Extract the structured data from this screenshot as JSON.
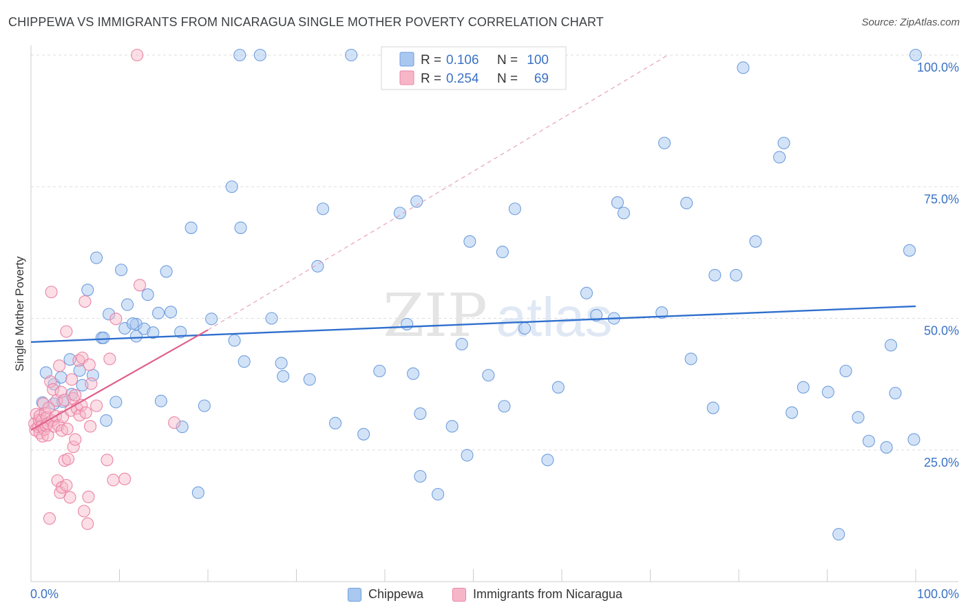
{
  "title": "CHIPPEWA VS IMMIGRANTS FROM NICARAGUA SINGLE MOTHER POVERTY CORRELATION CHART",
  "source": "Source: ZipAtlas.com",
  "watermark": {
    "zip": "ZIP",
    "atlas": "atlas"
  },
  "colors": {
    "blue_fill": "#a8c8f0",
    "blue_stroke": "#6f9ddd",
    "blue_line": "#2f6fce",
    "pink_fill": "#f7b6c8",
    "pink_stroke": "#ea84a6",
    "pink_line": "#e0608a",
    "value_text": "#3a72c4",
    "grid": "#dddddd"
  },
  "legend": [
    {
      "r_label": "R =",
      "r_value": "0.106",
      "n_label": "N =",
      "n_value": "100"
    },
    {
      "r_label": "R =",
      "r_value": "0.254",
      "n_label": "N =",
      "n_value": "69"
    }
  ],
  "chart_data": {
    "type": "scatter",
    "title": "CHIPPEWA VS IMMIGRANTS FROM NICARAGUA SINGLE MOTHER POVERTY CORRELATION CHART",
    "xlabel": "",
    "ylabel": "Single Mother Poverty",
    "xlim": [
      0,
      100
    ],
    "ylim": [
      0,
      100
    ],
    "x_tick_labels": [
      "0.0%",
      "100.0%"
    ],
    "y_tick_values": [
      25,
      50,
      75,
      100
    ],
    "y_tick_labels": [
      "25.0%",
      "50.0%",
      "75.0%",
      "100.0%"
    ],
    "legend_position": "top-center",
    "series": [
      {
        "name": "Chippewa",
        "r": 0.106,
        "n": 100,
        "trend": {
          "x": [
            0,
            100
          ],
          "y": [
            45.5,
            52.3
          ],
          "style": "solid"
        },
        "points": [
          [
            1.3,
            34
          ],
          [
            1.7,
            39.7
          ],
          [
            2.6,
            37.5
          ],
          [
            2.6,
            33.8
          ],
          [
            3.4,
            38.8
          ],
          [
            3.6,
            34.2
          ],
          [
            4.4,
            42.2
          ],
          [
            4.6,
            35.6
          ],
          [
            5.5,
            40.1
          ],
          [
            5.8,
            37.3
          ],
          [
            6.4,
            55.4
          ],
          [
            7.0,
            39.2
          ],
          [
            7.4,
            61.5
          ],
          [
            8.0,
            46.3
          ],
          [
            8.5,
            30.6
          ],
          [
            8.8,
            50.8
          ],
          [
            9.6,
            34.1
          ],
          [
            10.2,
            59.2
          ],
          [
            10.6,
            48.1
          ],
          [
            10.9,
            52.6
          ],
          [
            11.9,
            48.9
          ],
          [
            11.9,
            46.6
          ],
          [
            12.8,
            48.0
          ],
          [
            13.2,
            54.5
          ],
          [
            13.8,
            47.3
          ],
          [
            14.4,
            51.0
          ],
          [
            14.7,
            34.3
          ],
          [
            15.3,
            58.9
          ],
          [
            15.8,
            51.2
          ],
          [
            16.9,
            47.4
          ],
          [
            17.1,
            29.4
          ],
          [
            18.1,
            67.2
          ],
          [
            18.9,
            16.9
          ],
          [
            19.6,
            33.4
          ],
          [
            20.4,
            49.9
          ],
          [
            22.7,
            75.0
          ],
          [
            23.0,
            45.8
          ],
          [
            23.6,
            100
          ],
          [
            23.7,
            67.2
          ],
          [
            24.1,
            41.8
          ],
          [
            25.9,
            100
          ],
          [
            27.2,
            50.0
          ],
          [
            28.3,
            41.5
          ],
          [
            28.5,
            39.0
          ],
          [
            31.5,
            38.4
          ],
          [
            32.4,
            59.9
          ],
          [
            33.0,
            70.8
          ],
          [
            34.4,
            30.1
          ],
          [
            36.2,
            100
          ],
          [
            37.6,
            28.0
          ],
          [
            39.4,
            40.0
          ],
          [
            41.7,
            70.0
          ],
          [
            42.5,
            48.9
          ],
          [
            43.2,
            39.5
          ],
          [
            43.6,
            72.2
          ],
          [
            44.0,
            31.9
          ],
          [
            44.0,
            20.0
          ],
          [
            46.0,
            16.6
          ],
          [
            47.6,
            29.5
          ],
          [
            48.7,
            45.1
          ],
          [
            49.3,
            24.0
          ],
          [
            49.6,
            64.6
          ],
          [
            51.7,
            39.2
          ],
          [
            53.3,
            62.6
          ],
          [
            53.5,
            33.3
          ],
          [
            54.7,
            70.8
          ],
          [
            55.8,
            48.1
          ],
          [
            58.4,
            23.1
          ],
          [
            59.6,
            36.9
          ],
          [
            62.8,
            54.8
          ],
          [
            63.9,
            50.6
          ],
          [
            65.9,
            50.0
          ],
          [
            66.3,
            72.0
          ],
          [
            67.0,
            70.0
          ],
          [
            71.3,
            51.1
          ],
          [
            71.6,
            83.3
          ],
          [
            74.1,
            71.9
          ],
          [
            74.6,
            42.3
          ],
          [
            77.1,
            33.0
          ],
          [
            77.3,
            58.2
          ],
          [
            79.7,
            58.2
          ],
          [
            80.5,
            97.6
          ],
          [
            81.9,
            64.6
          ],
          [
            84.6,
            80.6
          ],
          [
            85.1,
            83.3
          ],
          [
            86.0,
            32.1
          ],
          [
            87.3,
            36.9
          ],
          [
            90.1,
            36.0
          ],
          [
            91.3,
            9.0
          ],
          [
            92.1,
            40.0
          ],
          [
            93.5,
            31.2
          ],
          [
            94.7,
            26.7
          ],
          [
            96.7,
            25.5
          ],
          [
            97.2,
            44.9
          ],
          [
            97.7,
            35.8
          ],
          [
            99.3,
            62.9
          ],
          [
            99.8,
            27.0
          ],
          [
            100.0,
            100
          ],
          [
            8.2,
            46.3
          ],
          [
            11.5,
            49.0
          ]
        ]
      },
      {
        "name": "Immigrants from Nicaragua",
        "r": 0.254,
        "n": 69,
        "trend": {
          "x": [
            0,
            20
          ],
          "y": [
            28.8,
            47.8
          ],
          "style": "solid"
        },
        "trend_extension": {
          "x": [
            20,
            72
          ],
          "y": [
            47.8,
            100
          ],
          "style": "dashed"
        },
        "points": [
          [
            0.4,
            30.0
          ],
          [
            0.5,
            28.8
          ],
          [
            0.6,
            31.8
          ],
          [
            0.8,
            29.4
          ],
          [
            0.9,
            30.7
          ],
          [
            1.0,
            28.2
          ],
          [
            1.0,
            31.5
          ],
          [
            1.2,
            30.6
          ],
          [
            1.2,
            29.5
          ],
          [
            1.3,
            27.6
          ],
          [
            1.4,
            33.8
          ],
          [
            1.5,
            28.9
          ],
          [
            1.6,
            32.0
          ],
          [
            1.7,
            29.6
          ],
          [
            1.8,
            31.2
          ],
          [
            1.9,
            27.8
          ],
          [
            1.9,
            30.0
          ],
          [
            2.0,
            33.0
          ],
          [
            2.1,
            12.0
          ],
          [
            2.2,
            38.0
          ],
          [
            2.3,
            55.0
          ],
          [
            2.4,
            30.6
          ],
          [
            2.5,
            36.5
          ],
          [
            2.6,
            29.5
          ],
          [
            2.8,
            31.4
          ],
          [
            2.9,
            34.4
          ],
          [
            3.0,
            19.2
          ],
          [
            3.1,
            29.7
          ],
          [
            3.2,
            41.0
          ],
          [
            3.3,
            16.9
          ],
          [
            3.4,
            36.0
          ],
          [
            3.5,
            17.9
          ],
          [
            3.5,
            28.7
          ],
          [
            3.6,
            31.3
          ],
          [
            3.8,
            23.0
          ],
          [
            3.8,
            34.5
          ],
          [
            4.0,
            47.5
          ],
          [
            4.0,
            18.3
          ],
          [
            4.1,
            29.0
          ],
          [
            4.2,
            23.3
          ],
          [
            4.4,
            16.0
          ],
          [
            4.5,
            32.5
          ],
          [
            4.6,
            38.4
          ],
          [
            4.8,
            25.6
          ],
          [
            4.8,
            34.8
          ],
          [
            5.0,
            35.4
          ],
          [
            5.0,
            27.0
          ],
          [
            5.2,
            32.9
          ],
          [
            5.4,
            42.0
          ],
          [
            5.5,
            31.6
          ],
          [
            5.7,
            33.5
          ],
          [
            5.8,
            42.5
          ],
          [
            6.0,
            13.4
          ],
          [
            6.1,
            53.2
          ],
          [
            6.2,
            32.1
          ],
          [
            6.4,
            11.0
          ],
          [
            6.5,
            16.1
          ],
          [
            6.6,
            41.2
          ],
          [
            6.7,
            29.5
          ],
          [
            6.8,
            37.6
          ],
          [
            7.4,
            33.4
          ],
          [
            8.6,
            23.1
          ],
          [
            8.9,
            42.3
          ],
          [
            9.3,
            19.3
          ],
          [
            9.6,
            49.9
          ],
          [
            10.6,
            19.5
          ],
          [
            12.0,
            100
          ],
          [
            12.3,
            56.3
          ],
          [
            16.2,
            30.2
          ]
        ]
      }
    ]
  },
  "bottom_legend": [
    "Chippewa",
    "Immigrants from Nicaragua"
  ]
}
